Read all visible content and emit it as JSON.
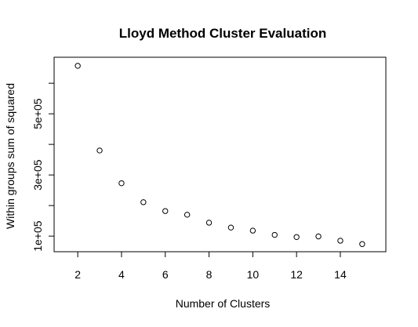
{
  "chart_data": {
    "type": "scatter",
    "title": "Lloyd Method Cluster Evaluation",
    "xlabel": "Number of Clusters",
    "ylabel": "Within groups sum of squared",
    "x": [
      2,
      3,
      4,
      5,
      6,
      7,
      8,
      9,
      10,
      11,
      12,
      13,
      14,
      15
    ],
    "y": [
      657000,
      380000,
      273000,
      211000,
      182000,
      170000,
      144000,
      128000,
      118000,
      104000,
      97000,
      99000,
      85000,
      74000
    ],
    "xlim": [
      0.92,
      16.08
    ],
    "ylim": [
      49000,
      685000
    ],
    "x_ticks": [
      2,
      4,
      6,
      8,
      10,
      12,
      14
    ],
    "x_tick_labels": [
      "2",
      "4",
      "6",
      "8",
      "10",
      "12",
      "14"
    ],
    "y_ticks": [
      100000,
      200000,
      300000,
      400000,
      500000,
      600000
    ],
    "y_tick_labels": [
      "1e+05",
      "",
      "3e+05",
      "",
      "5e+05",
      ""
    ],
    "grid": false,
    "marker": "open-circle"
  }
}
